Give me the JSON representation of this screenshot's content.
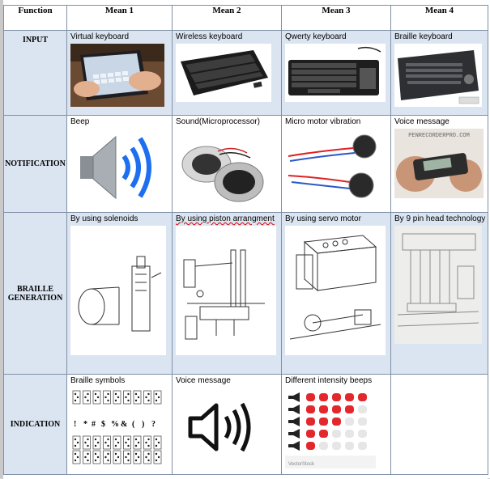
{
  "headers": [
    "Function",
    "Mean 1",
    "Mean 2",
    "Mean 3",
    "Mean 4"
  ],
  "rows": [
    {
      "function": "INPUT",
      "means": [
        "Virtual keyboard",
        "Wireless keyboard",
        "Qwerty keyboard",
        "Braille keyboard"
      ]
    },
    {
      "function": "NOTIFICATION",
      "means": [
        "Beep",
        "Sound(Microprocessor)",
        "Micro motor vibration",
        "Voice message"
      ]
    },
    {
      "function": "BRAILLE GENERATION",
      "means": [
        "By using solenoids",
        "By using piston arrangment",
        "By using servo motor",
        "By 9 pin head technology"
      ]
    },
    {
      "function": "INDICATION",
      "means": [
        "Braille symbols",
        "Voice message",
        "Different intensity beeps",
        ""
      ]
    }
  ],
  "images": {
    "voice_recorder_brand": "PENRECORDERPRO.COM",
    "beeps_brand": "VectorStock"
  }
}
